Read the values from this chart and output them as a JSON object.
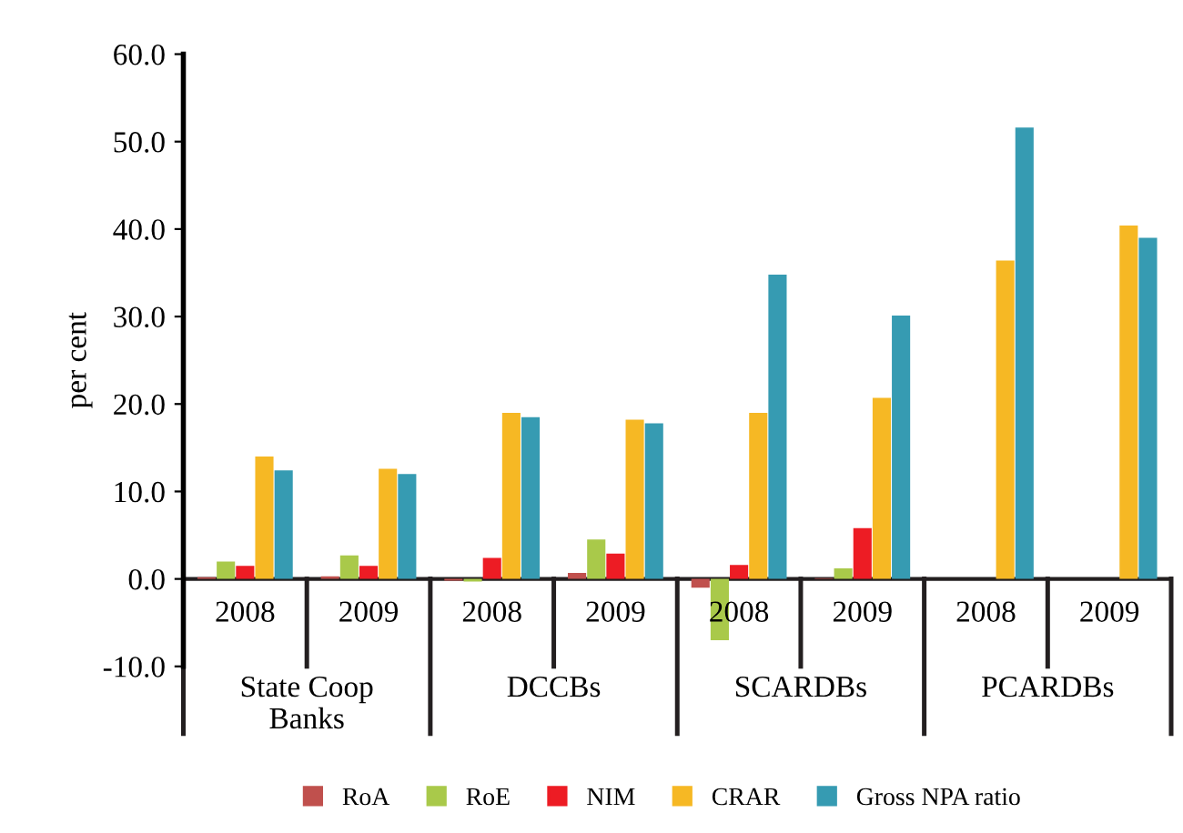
{
  "chart_data": {
    "type": "bar",
    "ylabel": "per cent",
    "categories": [
      "2008",
      "2009",
      "2008",
      "2009",
      "2008",
      "2009",
      "2008",
      "2009"
    ],
    "annotations": [
      "State Coop\nBanks",
      "DCCBs",
      "SCARDBs",
      "PCARDBs"
    ],
    "series": [
      {
        "name": "RoA",
        "color": "#c0504d",
        "values": [
          0.2,
          0.3,
          -0.2,
          0.7,
          -1.0,
          0.1,
          null,
          null
        ]
      },
      {
        "name": "RoE",
        "color": "#a9c94a",
        "values": [
          2.0,
          2.7,
          -0.3,
          4.5,
          -7.0,
          1.2,
          null,
          null
        ]
      },
      {
        "name": "NIM",
        "color": "#ed1c24",
        "values": [
          1.5,
          1.5,
          2.4,
          2.9,
          1.6,
          5.8,
          null,
          null
        ]
      },
      {
        "name": "CRAR",
        "color": "#f6b824",
        "values": [
          14.0,
          12.6,
          19.0,
          18.2,
          19.0,
          20.7,
          36.4,
          40.4
        ]
      },
      {
        "name": "Gross NPA ratio",
        "color": "#369bb2",
        "values": [
          12.4,
          12.0,
          18.5,
          17.8,
          34.8,
          30.1,
          51.6,
          39.0
        ]
      }
    ],
    "ylim": [
      -10,
      60
    ],
    "yticks": [
      {
        "value": -10,
        "label": "-10.0"
      },
      {
        "value": 0,
        "label": "0.0"
      },
      {
        "value": 10,
        "label": "10.0"
      },
      {
        "value": 20,
        "label": "20.0"
      },
      {
        "value": 30,
        "label": "30.0"
      },
      {
        "value": 40,
        "label": "40.0"
      },
      {
        "value": 50,
        "label": "50.0"
      },
      {
        "value": 60,
        "label": "60.0"
      }
    ],
    "legend": "bottom",
    "grid": false
  }
}
